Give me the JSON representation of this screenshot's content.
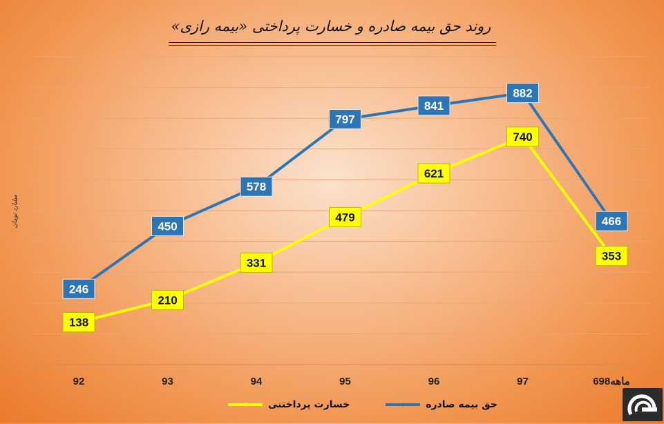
{
  "chart_data": {
    "type": "line",
    "title": "روند حق بیمه صادره و خسارت پرداختی «بیمه رازی»",
    "ylabel": "میلیارد تومان",
    "categories": [
      "92",
      "93",
      "94",
      "95",
      "96",
      "97",
      "6ماهه98"
    ],
    "ylim": [
      0,
      1000
    ],
    "grid": true,
    "legend_position": "bottom",
    "series": [
      {
        "name": "حق بیمه صادره",
        "color": "#2e75b6",
        "values": [
          246,
          450,
          578,
          797,
          841,
          882,
          466
        ]
      },
      {
        "name": "خسارت پرداختنی",
        "color": "#ffff00",
        "values": [
          138,
          210,
          331,
          479,
          621,
          740,
          353
        ]
      }
    ]
  },
  "logo": {
    "icon": "company-logo-icon"
  }
}
